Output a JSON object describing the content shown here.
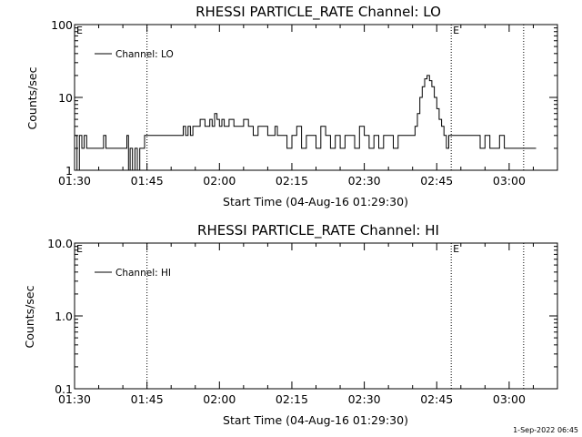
{
  "chart_data": [
    {
      "type": "line",
      "title": "RHESSI PARTICLE_RATE Channel: LO",
      "xlabel": "Start Time (04-Aug-16 01:29:30)",
      "ylabel": "Counts/sec",
      "yscale": "log",
      "ylim": [
        1,
        100
      ],
      "ytick_values": [
        1,
        10,
        100
      ],
      "ytick_labels": [
        "1",
        "10",
        "100"
      ],
      "xlim": [
        "01:30",
        "03:10"
      ],
      "xtick_values": [
        "01:30",
        "01:45",
        "02:00",
        "02:15",
        "02:30",
        "02:45",
        "03:00"
      ],
      "xtick_labels": [
        "01:30",
        "01:45",
        "02:00",
        "02:15",
        "02:30",
        "02:45",
        "03:00"
      ],
      "vertical_lines": [
        "01:45",
        "02:48",
        "03:03"
      ],
      "markers": [
        {
          "label": "E",
          "x": "01:30"
        },
        {
          "label": "E",
          "x": "02:48"
        }
      ],
      "legend": {
        "placement": "top-left"
      },
      "series": [
        {
          "name": "Channel: LO",
          "x": [
            "01:30:00",
            "01:30:30",
            "01:31:00",
            "01:31:30",
            "01:32:00",
            "01:32:30",
            "01:35:30",
            "01:36:00",
            "01:36:30",
            "01:37:00",
            "01:37:30",
            "01:40:30",
            "01:40:50",
            "01:41:10",
            "01:41:30",
            "01:42:00",
            "01:42:30",
            "01:43:00",
            "01:43:30",
            "01:44:00",
            "01:44:30",
            "01:45:00",
            "01:45:30",
            "01:52:00",
            "01:52:30",
            "01:53:00",
            "01:53:30",
            "01:54:00",
            "01:54:30",
            "01:55:00",
            "01:56:00",
            "01:57:00",
            "01:58:00",
            "01:58:30",
            "01:59:00",
            "01:59:30",
            "02:00:00",
            "02:00:30",
            "02:01:00",
            "02:02:00",
            "02:03:00",
            "02:04:00",
            "02:05:00",
            "02:06:00",
            "02:07:00",
            "02:08:00",
            "02:09:00",
            "02:10:00",
            "02:11:00",
            "02:11:30",
            "02:12:00",
            "02:13:00",
            "02:14:00",
            "02:15:00",
            "02:16:00",
            "02:17:00",
            "02:18:00",
            "02:19:00",
            "02:20:00",
            "02:21:00",
            "02:22:00",
            "02:23:00",
            "02:24:00",
            "02:25:00",
            "02:26:00",
            "02:27:00",
            "02:28:00",
            "02:29:00",
            "02:30:00",
            "02:31:00",
            "02:32:00",
            "02:33:00",
            "02:34:00",
            "02:35:00",
            "02:36:00",
            "02:37:00",
            "02:38:00",
            "02:39:00",
            "02:40:00",
            "02:40:30",
            "02:41:00",
            "02:41:30",
            "02:42:00",
            "02:42:30",
            "02:43:00",
            "02:43:30",
            "02:44:00",
            "02:44:30",
            "02:45:00",
            "02:45:30",
            "02:46:00",
            "02:46:30",
            "02:47:00",
            "02:47:30",
            "02:48:00",
            "02:48:30",
            "02:49:00",
            "02:50:00",
            "02:53:00",
            "02:54:00",
            "02:55:00",
            "02:56:00",
            "02:57:00",
            "02:58:00",
            "02:59:00",
            "03:00:00",
            "03:01:00",
            "03:02:00",
            "03:03:00",
            "03:04:00",
            "03:05:00"
          ],
          "values": [
            3,
            1,
            3,
            2,
            3,
            2,
            2,
            3,
            2,
            2,
            2,
            2,
            3,
            1,
            2,
            1,
            2,
            1,
            2,
            2,
            3,
            3,
            3,
            3,
            4,
            3,
            4,
            3,
            4,
            4,
            5,
            4,
            5,
            4,
            6,
            5,
            4,
            5,
            4,
            5,
            4,
            4,
            5,
            4,
            3,
            4,
            4,
            3,
            3,
            4,
            3,
            3,
            2,
            3,
            4,
            2,
            3,
            3,
            2,
            4,
            3,
            2,
            3,
            2,
            3,
            3,
            2,
            4,
            3,
            2,
            3,
            2,
            3,
            3,
            2,
            3,
            3,
            3,
            3,
            4,
            6,
            10,
            14,
            18,
            20,
            17,
            14,
            10,
            7,
            5,
            4,
            3,
            2,
            3,
            3,
            3,
            3,
            3,
            3,
            2,
            3,
            2,
            2,
            3,
            2,
            2,
            2,
            2,
            2,
            2,
            2
          ]
        }
      ]
    },
    {
      "type": "line",
      "title": "RHESSI PARTICLE_RATE Channel: HI",
      "xlabel": "Start Time (04-Aug-16 01:29:30)",
      "ylabel": "Counts/sec",
      "yscale": "log",
      "ylim": [
        0.1,
        10
      ],
      "ytick_values": [
        0.1,
        1,
        10
      ],
      "ytick_labels": [
        "0.1",
        "1.0",
        "10.0"
      ],
      "xlim": [
        "01:30",
        "03:10"
      ],
      "xtick_values": [
        "01:30",
        "01:45",
        "02:00",
        "02:15",
        "02:30",
        "02:45",
        "03:00"
      ],
      "xtick_labels": [
        "01:30",
        "01:45",
        "02:00",
        "02:15",
        "02:30",
        "02:45",
        "03:00"
      ],
      "vertical_lines": [
        "01:45",
        "02:48",
        "03:03"
      ],
      "markers": [
        {
          "label": "E",
          "x": "01:30"
        },
        {
          "label": "E",
          "x": "02:48"
        }
      ],
      "legend": {
        "placement": "top-left"
      },
      "series": [
        {
          "name": "Channel: HI",
          "x": [],
          "values": []
        }
      ]
    }
  ],
  "footer": {
    "timestamp": "1-Sep-2022 06:45"
  }
}
